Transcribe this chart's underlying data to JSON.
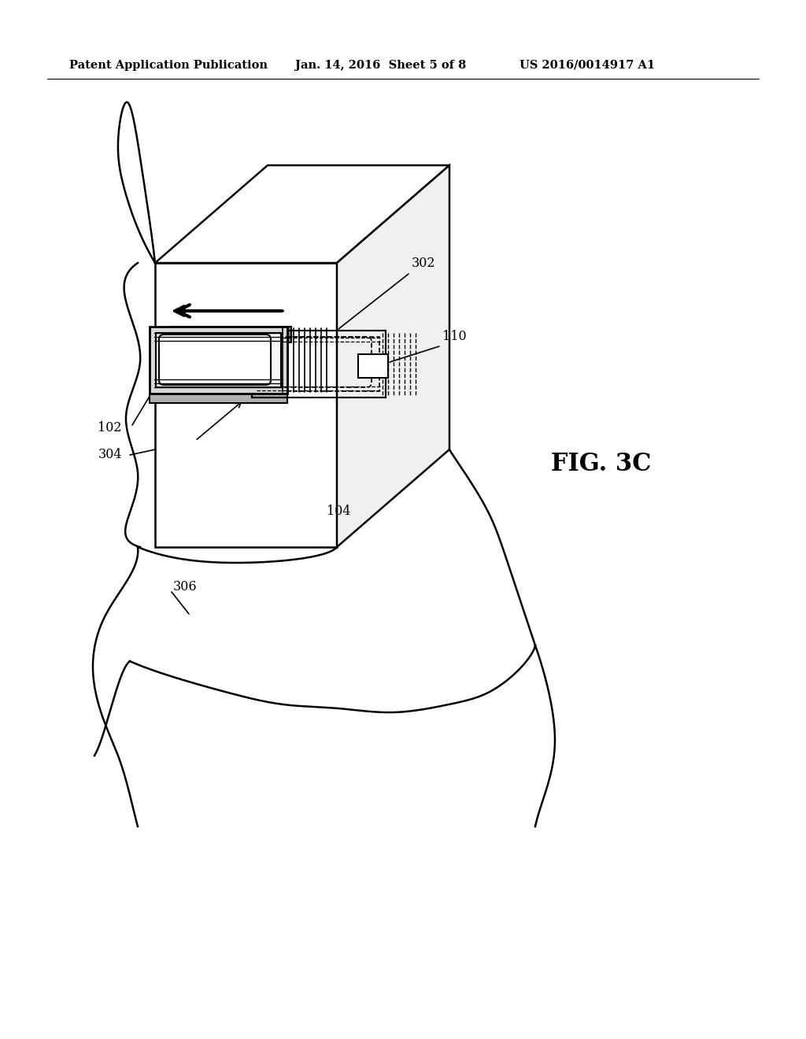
{
  "title_left": "Patent Application Publication",
  "title_mid": "Jan. 14, 2016  Sheet 5 of 8",
  "title_right": "US 2016/0014917 A1",
  "fig_label": "FIG. 3C",
  "background_color": "#ffffff",
  "line_color": "#000000"
}
